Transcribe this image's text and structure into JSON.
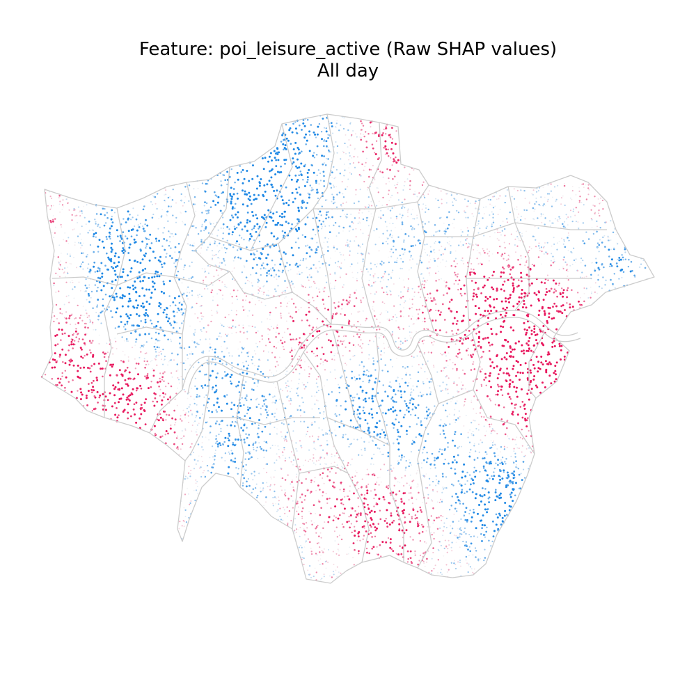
{
  "title": {
    "line1": "Feature: poi_leisure_active (Raw SHAP values)",
    "line2": "All day"
  },
  "map": {
    "region": "London boroughs",
    "boundary_color": "#cccccc",
    "background": "#ffffff",
    "colormap": {
      "negative": "#1e88e5",
      "neutral": "#f5f5f5",
      "positive": "#e8175d"
    },
    "legend": "none",
    "axes": "off"
  }
}
